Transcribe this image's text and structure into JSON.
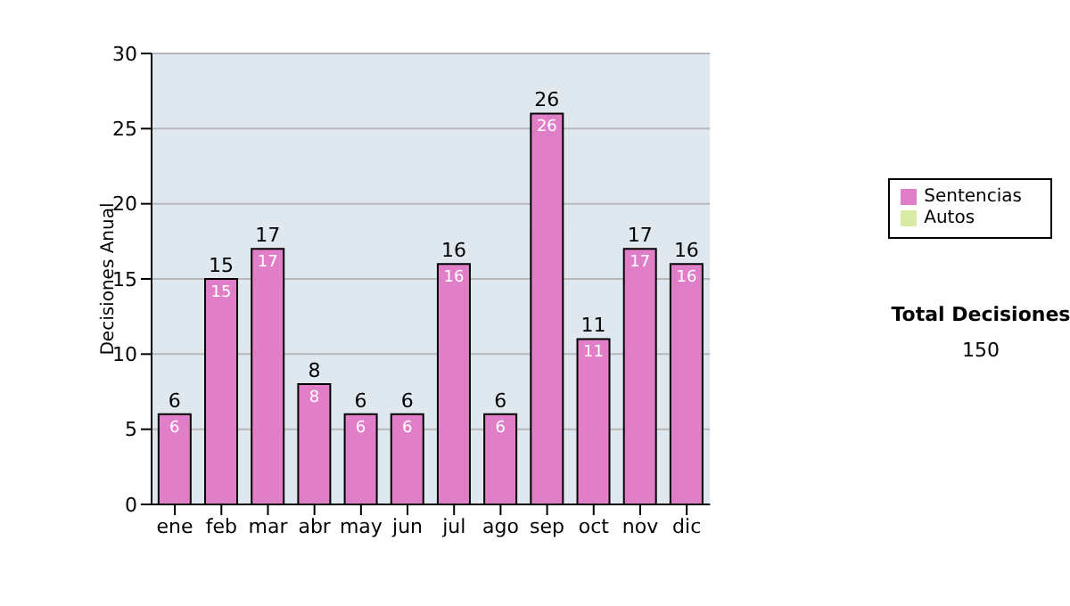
{
  "chart_data": {
    "type": "bar",
    "ylabel": "Decisiones Anual",
    "categories": [
      "ene",
      "feb",
      "mar",
      "abr",
      "may",
      "jun",
      "jul",
      "ago",
      "sep",
      "oct",
      "nov",
      "dic"
    ],
    "series": [
      {
        "name": "Sentencias",
        "color": "#e07ec8",
        "values": [
          6,
          15,
          17,
          8,
          6,
          6,
          16,
          6,
          26,
          11,
          17,
          16
        ],
        "value_labels": [
          "6",
          "15",
          "17",
          "8",
          "6",
          "6",
          "16",
          "6",
          "26",
          "11",
          "17",
          "16"
        ]
      },
      {
        "name": "Autos",
        "color": "#d9eaa6",
        "values": [
          0,
          0,
          0,
          0,
          0,
          0,
          0,
          0,
          0,
          0,
          0,
          0
        ]
      }
    ],
    "stacked": true,
    "totals": [
      "6",
      "15",
      "17",
      "8",
      "6",
      "6",
      "16",
      "6",
      "26",
      "11",
      "17",
      "16"
    ],
    "ylim": [
      0,
      30
    ],
    "yticks": [
      0,
      5,
      10,
      15,
      20,
      25,
      30
    ],
    "grid": "y",
    "legend": "right",
    "annotations": [
      "Total Decisiones",
      "150"
    ]
  }
}
